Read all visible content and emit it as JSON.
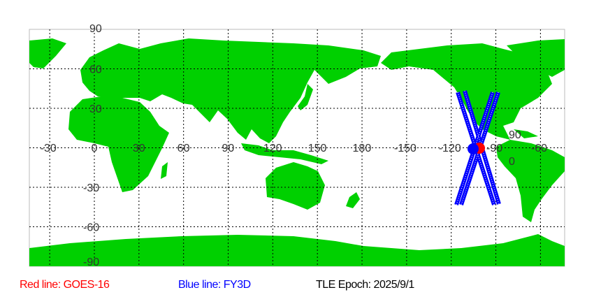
{
  "map": {
    "lon_labels": [
      "-30",
      "0",
      "30",
      "60",
      "90",
      "120",
      "150",
      "180",
      "-150",
      "-120",
      "-90",
      "-60"
    ],
    "lat_labels": [
      "90",
      "60",
      "30",
      "0",
      "-30",
      "-60",
      "-90"
    ],
    "satellite_labels": [
      "90",
      "0"
    ],
    "colors": {
      "land": "#00d000",
      "ocean": "#ffffff",
      "red_track": "#ff0000",
      "blue_track": "#0000ff",
      "grid": "#000000"
    }
  },
  "legend": {
    "red": "Red line: GOES-16",
    "blue": "Blue line: FY3D",
    "epoch": "TLE Epoch: 2025/9/1"
  }
}
